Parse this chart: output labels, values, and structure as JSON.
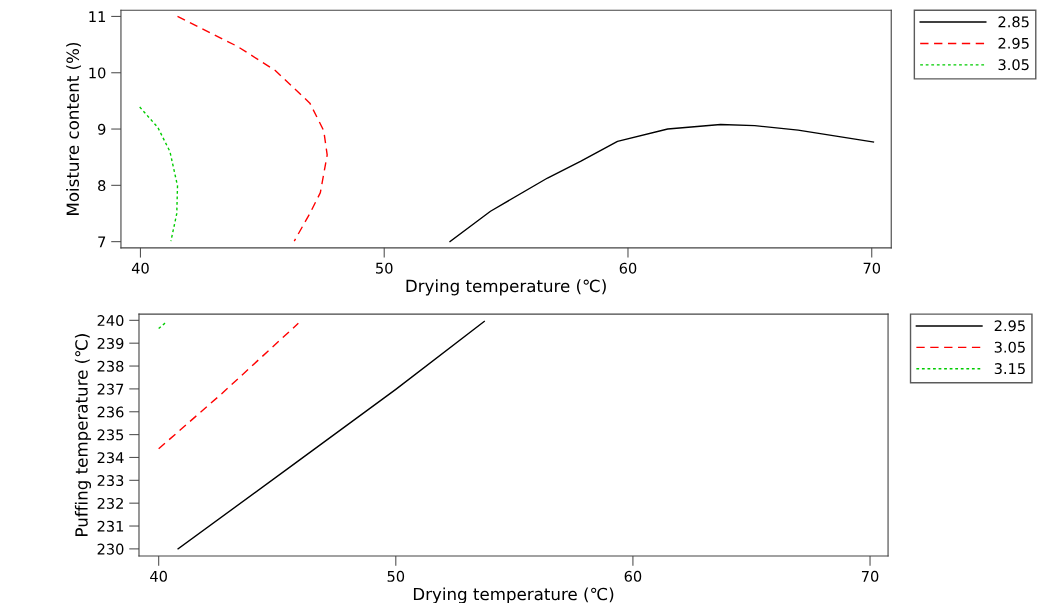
{
  "chart_data": [
    {
      "type": "line",
      "xlabel": "Drying temperature (℃)",
      "ylabel": "Moisture content (%)",
      "xlim": [
        39.2,
        70.8
      ],
      "ylim": [
        6.89,
        11.11
      ],
      "xticks": [
        40,
        50,
        60,
        70
      ],
      "yticks": [
        7,
        8,
        9,
        10,
        11
      ],
      "grid": false,
      "legend": "top right",
      "series": [
        {
          "name": "2.85",
          "color": "#000000",
          "line_style": "solid",
          "x": [
            52.7,
            54.36,
            56.7,
            58.07,
            59.57,
            61.63,
            63.8,
            65.2,
            66.98,
            70.07
          ],
          "values": [
            7.0,
            7.54,
            8.13,
            8.43,
            8.78,
            9.0,
            9.08,
            9.06,
            8.98,
            8.77
          ]
        },
        {
          "name": "2.95",
          "color": "#ff0000",
          "line_style": "dashed",
          "x": [
            41.52,
            43.97,
            45.53,
            46.95,
            47.52,
            47.66,
            47.38,
            46.95,
            46.31
          ],
          "values": [
            11.0,
            10.47,
            10.04,
            9.46,
            8.97,
            8.54,
            7.87,
            7.5,
            7.01
          ]
        },
        {
          "name": "3.05",
          "color": "#00cc00",
          "line_style": "dotted",
          "x": [
            39.97,
            40.71,
            41.21,
            41.52,
            41.49,
            41.25
          ],
          "values": [
            9.39,
            9.03,
            8.6,
            7.99,
            7.5,
            7.01
          ]
        }
      ]
    },
    {
      "type": "line",
      "xlabel": "Drying temperature (℃)",
      "ylabel": "Puffing temperature (℃)",
      "xlim": [
        39.17,
        70.76
      ],
      "ylim": [
        229.69,
        240.27
      ],
      "xticks": [
        40,
        50,
        60,
        70
      ],
      "yticks": [
        230,
        231,
        232,
        233,
        234,
        235,
        236,
        237,
        238,
        239,
        240
      ],
      "grid": false,
      "legend": "top right",
      "series": [
        {
          "name": "2.95",
          "color": "#000000",
          "line_style": "solid",
          "x": [
            40.82,
            45.69,
            50.0,
            53.73
          ],
          "values": [
            230.0,
            233.7,
            236.98,
            239.95
          ]
        },
        {
          "name": "3.05",
          "color": "#ff0000",
          "line_style": "dashed",
          "x": [
            40.0,
            42.67,
            45.89
          ],
          "values": [
            234.38,
            236.8,
            239.87
          ]
        },
        {
          "name": "3.15",
          "color": "#00cc00",
          "line_style": "dotted",
          "x": [
            40.0,
            40.35
          ],
          "values": [
            239.64,
            239.95
          ]
        }
      ]
    }
  ]
}
